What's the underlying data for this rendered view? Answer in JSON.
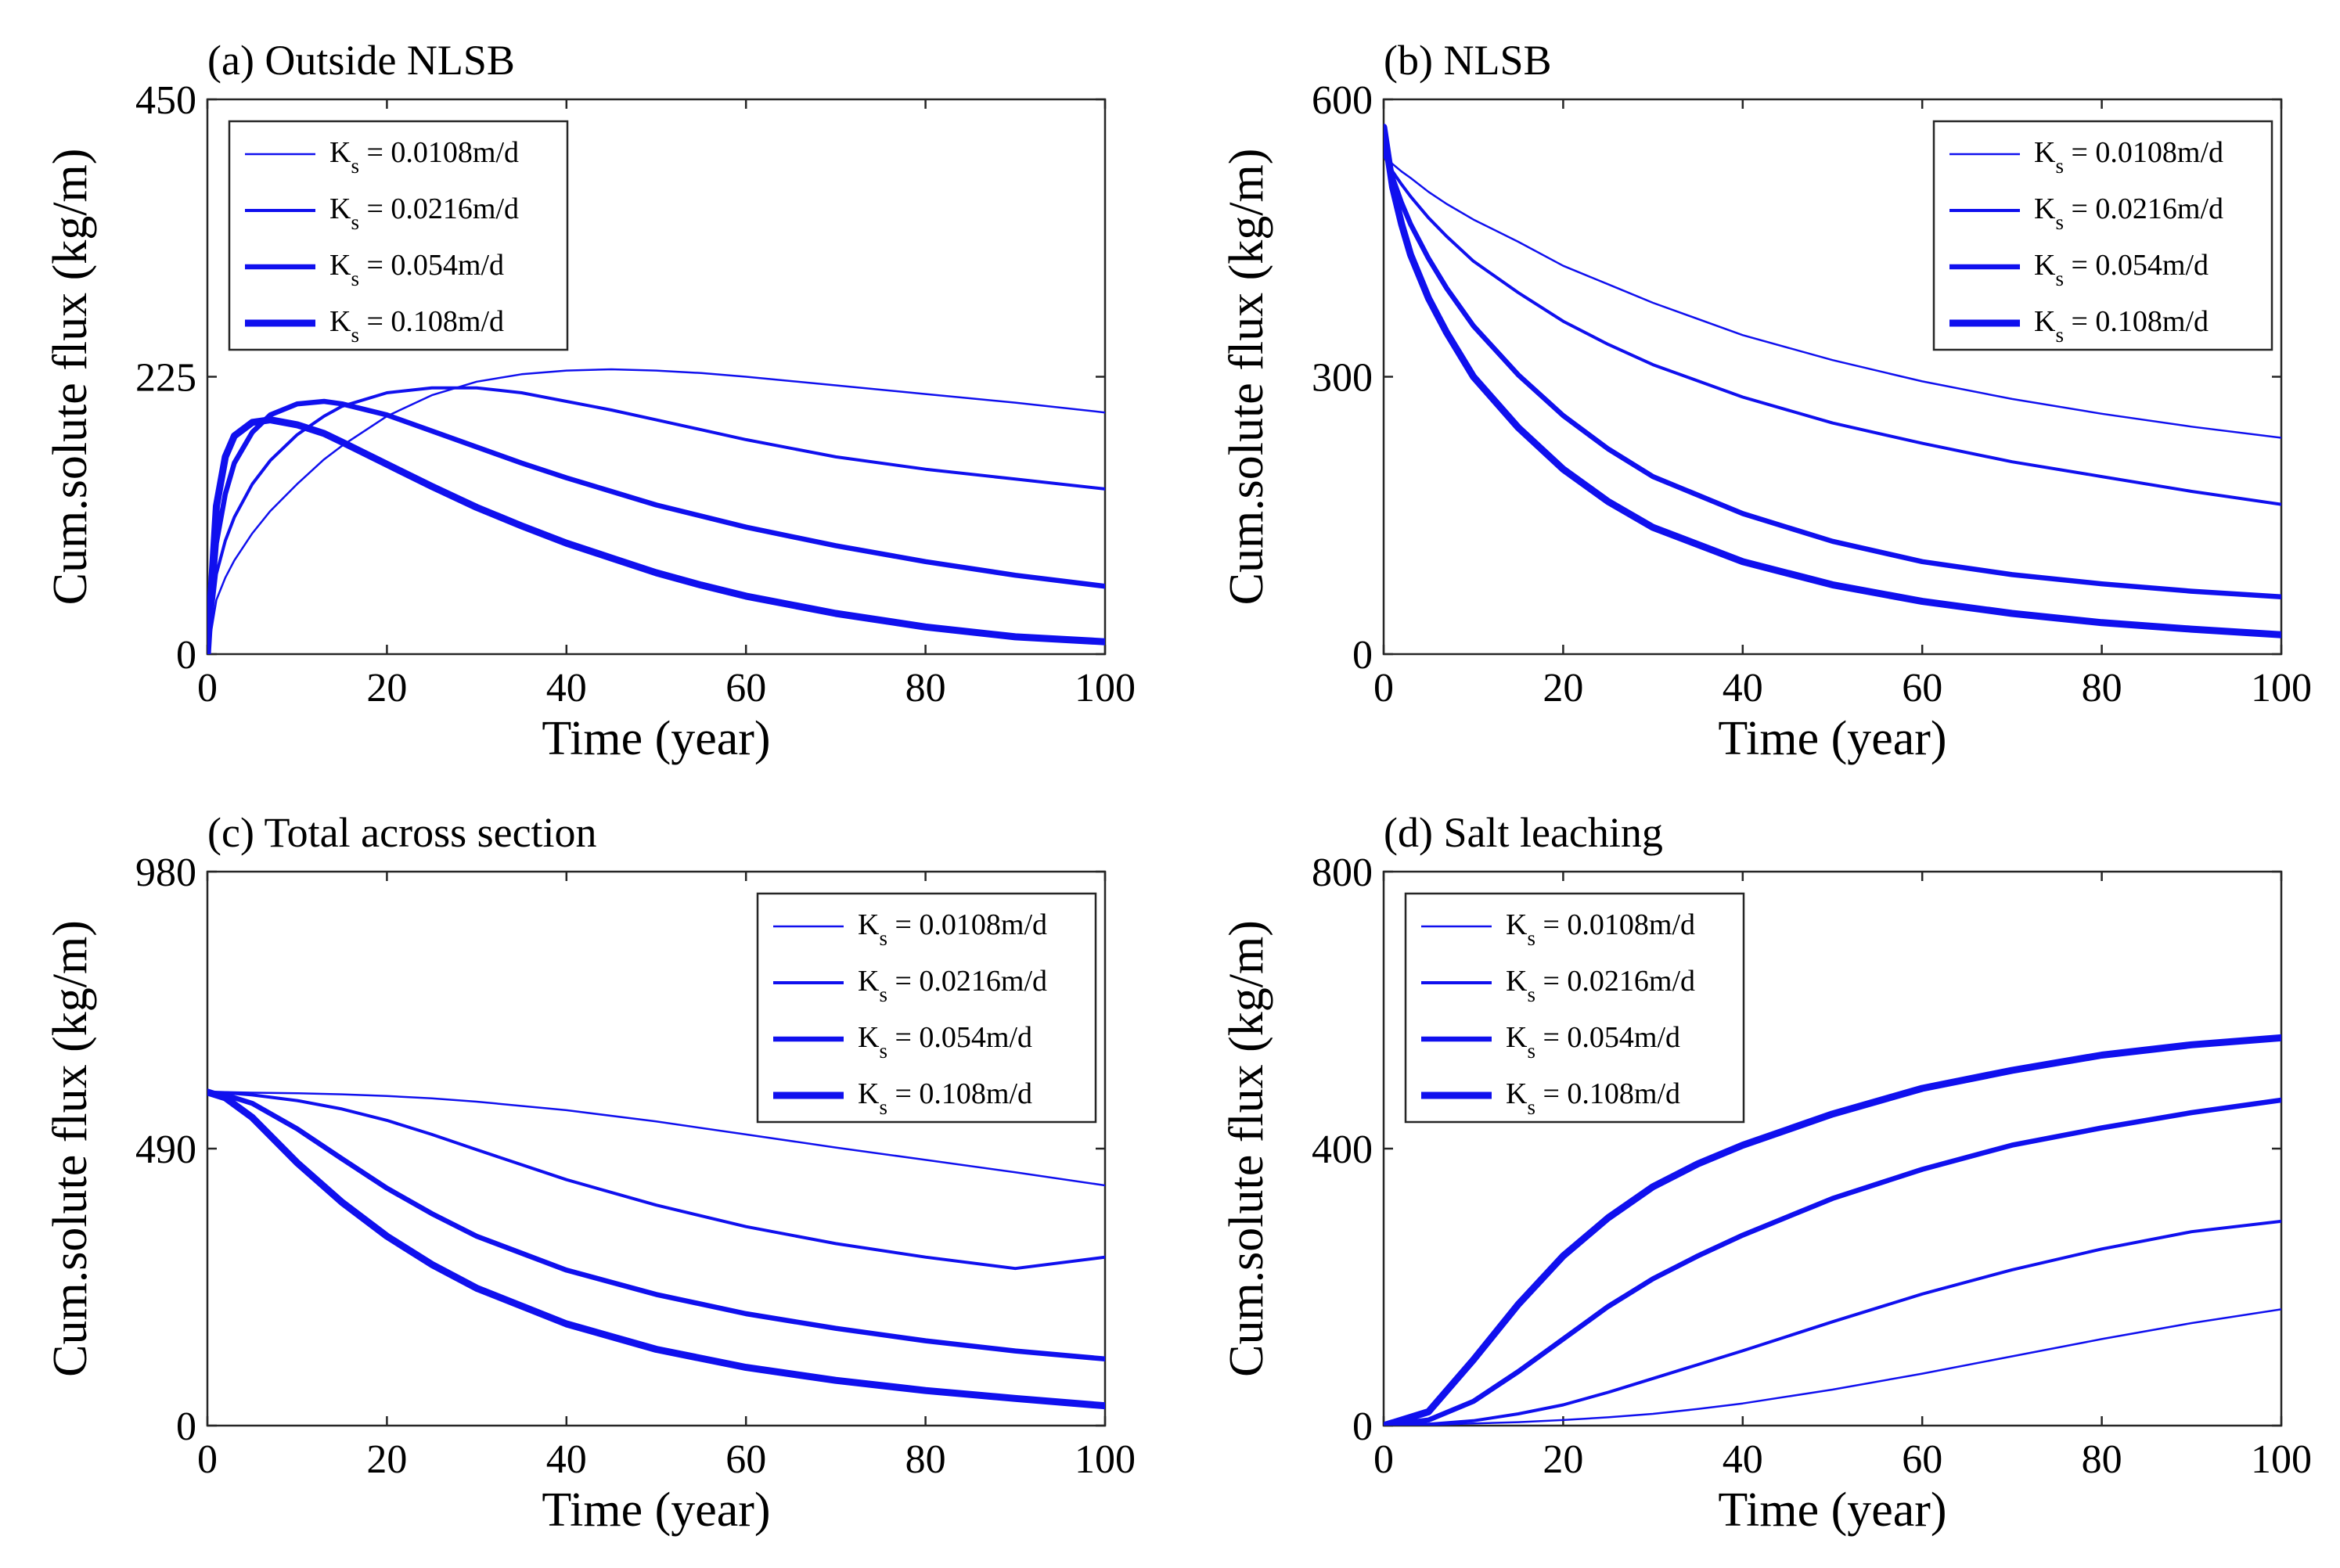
{
  "figure": {
    "line_color": "#1010ee",
    "legend_labels": [
      "K_s = 0.0108m/d",
      "K_s = 0.0216m/d",
      "K_s = 0.054m/d",
      "K_s = 0.108m/d"
    ],
    "legend_parts": [
      {
        "main": "K",
        "sub": "s",
        "rest": " = 0.0108m/d"
      },
      {
        "main": "K",
        "sub": "s",
        "rest": " = 0.0216m/d"
      },
      {
        "main": "K",
        "sub": "s",
        "rest": " = 0.054m/d"
      },
      {
        "main": "K",
        "sub": "s",
        "rest": " = 0.108m/d"
      }
    ]
  },
  "chart_data": [
    {
      "type": "line",
      "title": "(a) Outside NLSB",
      "xlabel": "Time (year)",
      "ylabel": "Cum.solute flux (kg/m)",
      "xlim": [
        0,
        100
      ],
      "ylim": [
        0,
        450
      ],
      "xticks": [
        0,
        20,
        40,
        60,
        80,
        100
      ],
      "yticks": [
        0,
        225,
        450
      ],
      "legend_position": "top-left",
      "x": [
        0,
        1,
        2,
        3,
        5,
        7,
        10,
        13,
        15,
        20,
        25,
        30,
        35,
        40,
        45,
        50,
        55,
        60,
        70,
        80,
        90,
        100
      ],
      "series": [
        {
          "name": "K_s = 0.0108m/d",
          "values": [
            0,
            44,
            62,
            76,
            98,
            116,
            138,
            158,
            169,
            193,
            210,
            221,
            227,
            230,
            231,
            230,
            228,
            225,
            218,
            211,
            204,
            196
          ]
        },
        {
          "name": "K_s = 0.0216m/d",
          "values": [
            0,
            65,
            92,
            111,
            138,
            157,
            178,
            193,
            201,
            212,
            216,
            216,
            212,
            205,
            198,
            190,
            182,
            174,
            160,
            150,
            142,
            134
          ]
        },
        {
          "name": "K_s = 0.054m/d",
          "values": [
            0,
            90,
            130,
            155,
            180,
            194,
            203,
            205,
            203,
            194,
            181,
            168,
            155,
            143,
            132,
            121,
            112,
            103,
            88,
            75,
            64,
            55
          ]
        },
        {
          "name": "K_s = 0.108m/d",
          "values": [
            0,
            120,
            160,
            177,
            188,
            190,
            186,
            179,
            172,
            154,
            136,
            119,
            104,
            90,
            78,
            66,
            56,
            47,
            33,
            22,
            14,
            10
          ]
        }
      ]
    },
    {
      "type": "line",
      "title": "(b) NLSB",
      "xlabel": "Time (year)",
      "ylabel": "Cum.solute flux (kg/m)",
      "xlim": [
        0,
        100
      ],
      "ylim": [
        0,
        600
      ],
      "xticks": [
        0,
        20,
        40,
        60,
        80,
        100
      ],
      "yticks": [
        0,
        300,
        600
      ],
      "legend_position": "top-right",
      "x": [
        0,
        1,
        2,
        3,
        5,
        7,
        10,
        15,
        20,
        25,
        30,
        40,
        50,
        60,
        70,
        80,
        90,
        100
      ],
      "series": [
        {
          "name": "K_s = 0.0108m/d",
          "values": [
            540,
            530,
            522,
            515,
            500,
            487,
            470,
            446,
            420,
            400,
            380,
            345,
            318,
            295,
            276,
            260,
            246,
            234
          ]
        },
        {
          "name": "K_s = 0.0216m/d",
          "values": [
            540,
            522,
            508,
            495,
            472,
            452,
            425,
            391,
            360,
            335,
            313,
            278,
            250,
            228,
            208,
            192,
            176,
            162
          ]
        },
        {
          "name": "K_s = 0.054m/d",
          "values": [
            550,
            515,
            488,
            465,
            428,
            396,
            355,
            302,
            258,
            222,
            192,
            152,
            122,
            100,
            86,
            76,
            68,
            62
          ]
        },
        {
          "name": "K_s = 0.108m/d",
          "values": [
            570,
            505,
            465,
            432,
            385,
            348,
            300,
            245,
            200,
            165,
            137,
            100,
            75,
            57,
            44,
            34,
            27,
            21
          ]
        }
      ]
    },
    {
      "type": "line",
      "title": "(c) Total across section",
      "xlabel": "Time (year)",
      "ylabel": "Cum.solute flux (kg/m)",
      "xlim": [
        0,
        100
      ],
      "ylim": [
        0,
        980
      ],
      "xticks": [
        0,
        20,
        40,
        60,
        80,
        100
      ],
      "yticks": [
        0,
        490,
        980
      ],
      "legend_position": "top-right",
      "x": [
        0,
        2,
        5,
        10,
        15,
        20,
        25,
        30,
        40,
        50,
        60,
        70,
        80,
        90,
        100
      ],
      "series": [
        {
          "name": "K_s = 0.0108m/d",
          "values": [
            590,
            590,
            589,
            588,
            586,
            583,
            579,
            573,
            558,
            538,
            515,
            492,
            470,
            448,
            425
          ]
        },
        {
          "name": "K_s = 0.0216m/d",
          "values": [
            590,
            589,
            585,
            575,
            560,
            540,
            515,
            488,
            435,
            390,
            352,
            322,
            298,
            278,
            298
          ]
        },
        {
          "name": "K_s = 0.054m/d",
          "values": [
            590,
            585,
            570,
            525,
            472,
            420,
            375,
            335,
            275,
            232,
            198,
            172,
            150,
            132,
            118
          ]
        },
        {
          "name": "K_s = 0.108m/d",
          "values": [
            590,
            580,
            545,
            465,
            395,
            335,
            285,
            243,
            180,
            135,
            103,
            80,
            62,
            48,
            35
          ]
        }
      ]
    },
    {
      "type": "line",
      "title": "(d) Salt leaching",
      "xlabel": "Time (year)",
      "ylabel": "Cum.solute flux (kg/m)",
      "xlim": [
        0,
        100
      ],
      "ylim": [
        0,
        800
      ],
      "xticks": [
        0,
        20,
        40,
        60,
        80,
        100
      ],
      "yticks": [
        0,
        400,
        800
      ],
      "legend_position": "top-left",
      "x": [
        0,
        5,
        10,
        15,
        20,
        25,
        30,
        35,
        40,
        50,
        60,
        70,
        80,
        90,
        100
      ],
      "series": [
        {
          "name": "K_s = 0.0108m/d",
          "values": [
            0,
            1,
            3,
            5,
            8,
            12,
            17,
            24,
            32,
            52,
            75,
            100,
            125,
            148,
            168
          ]
        },
        {
          "name": "K_s = 0.0216m/d",
          "values": [
            0,
            2,
            7,
            17,
            30,
            48,
            68,
            88,
            108,
            150,
            190,
            225,
            255,
            280,
            295
          ]
        },
        {
          "name": "K_s = 0.054m/d",
          "values": [
            0,
            8,
            35,
            78,
            125,
            172,
            212,
            245,
            275,
            328,
            370,
            405,
            430,
            452,
            470
          ]
        },
        {
          "name": "K_s = 0.108m/d",
          "values": [
            0,
            20,
            95,
            175,
            245,
            300,
            345,
            378,
            405,
            450,
            487,
            513,
            535,
            550,
            560
          ]
        }
      ]
    }
  ]
}
